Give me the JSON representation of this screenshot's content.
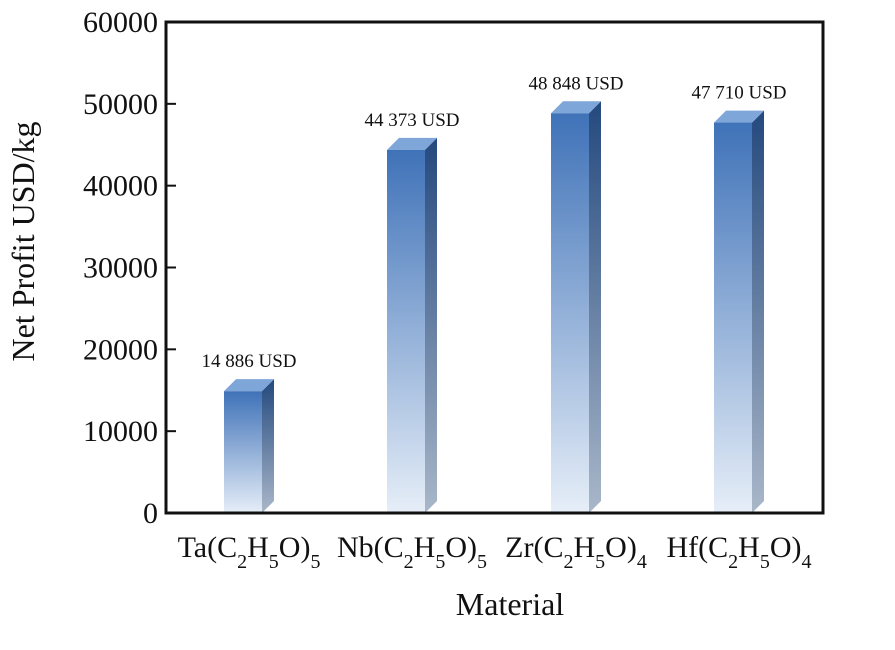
{
  "chart_data": {
    "type": "bar",
    "categories": [
      "Ta(C2H5O)5",
      "Nb(C2H5O)5",
      "Zr(C2H5O)4",
      "Hf(C2H5O)4"
    ],
    "category_labels": [
      [
        {
          "t": "Ta(C"
        },
        {
          "t": "2",
          "sub": true
        },
        {
          "t": "H"
        },
        {
          "t": "5",
          "sub": true
        },
        {
          "t": "O)"
        },
        {
          "t": "5",
          "sub": true
        }
      ],
      [
        {
          "t": "Nb(C"
        },
        {
          "t": "2",
          "sub": true
        },
        {
          "t": "H"
        },
        {
          "t": "5",
          "sub": true
        },
        {
          "t": "O)"
        },
        {
          "t": "5",
          "sub": true
        }
      ],
      [
        {
          "t": "Zr(C"
        },
        {
          "t": "2",
          "sub": true
        },
        {
          "t": "H"
        },
        {
          "t": "5",
          "sub": true
        },
        {
          "t": "O)"
        },
        {
          "t": "4",
          "sub": true
        }
      ],
      [
        {
          "t": "Hf(C"
        },
        {
          "t": "2",
          "sub": true
        },
        {
          "t": "H"
        },
        {
          "t": "5",
          "sub": true
        },
        {
          "t": "O)"
        },
        {
          "t": "4",
          "sub": true
        }
      ]
    ],
    "values": [
      14886,
      44373,
      48848,
      47710
    ],
    "data_labels": [
      "14 886 USD",
      "44 373 USD",
      "48 848 USD",
      "47 710 USD"
    ],
    "ylabel": "Net Profit USD/kg",
    "xlabel": "Material",
    "ylim": [
      0,
      60000
    ],
    "yticks": [
      0,
      10000,
      20000,
      30000,
      40000,
      50000,
      60000
    ],
    "ytick_labels": [
      "0",
      "10000",
      "20000",
      "30000",
      "40000",
      "50000",
      "60000"
    ],
    "grid": false,
    "colors": {
      "bar_top": "#3f72b8",
      "bar_bottom": "#e6eef8",
      "bar_side_top": "#24497e",
      "bar_side_bottom": "#a9b7c9",
      "bar_cap": "#7ea6d8"
    }
  }
}
